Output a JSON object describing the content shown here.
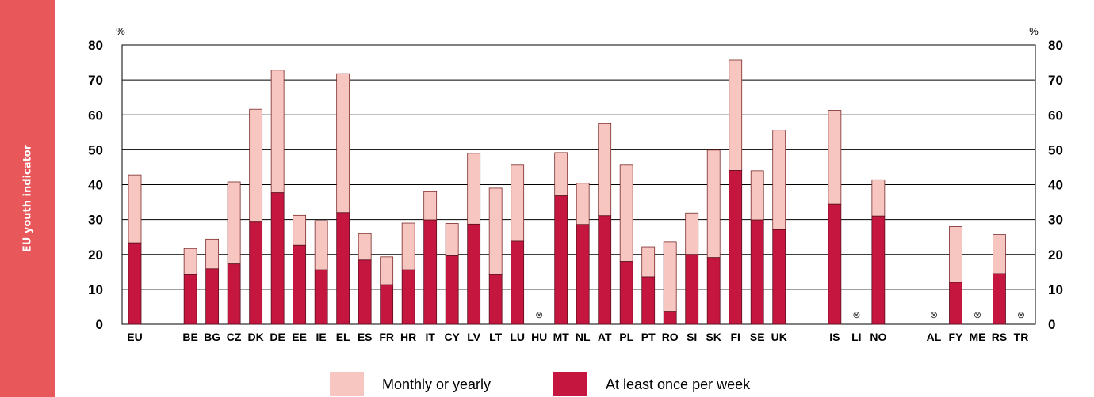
{
  "sidebar": {
    "label": "EU youth indicator",
    "color": "#e8585a"
  },
  "legend": [
    {
      "name": "Monthly or yearly",
      "color": "#f7c6c1"
    },
    {
      "name": "At least once per week",
      "color": "#c4163e"
    }
  ],
  "chart_data": {
    "type": "bar",
    "stacked": true,
    "categories": [
      "EU",
      "BE",
      "BG",
      "CZ",
      "DK",
      "DE",
      "EE",
      "IE",
      "EL",
      "ES",
      "FR",
      "HR",
      "IT",
      "CY",
      "LV",
      "LT",
      "LU",
      "HU",
      "MT",
      "NL",
      "AT",
      "PL",
      "PT",
      "RO",
      "SI",
      "SK",
      "FI",
      "SE",
      "UK",
      "IS",
      "LI",
      "NO",
      "AL",
      "FY",
      "ME",
      "RS",
      "TR"
    ],
    "groups": [
      [
        "EU"
      ],
      [
        "BE",
        "BG",
        "CZ",
        "DK",
        "DE",
        "EE",
        "IE",
        "EL",
        "ES",
        "FR",
        "HR",
        "IT",
        "CY",
        "LV",
        "LT",
        "LU",
        "HU",
        "MT",
        "NL",
        "AT",
        "PL",
        "PT",
        "RO",
        "SI",
        "SK",
        "FI",
        "SE",
        "UK"
      ],
      [
        "IS",
        "LI",
        "NO"
      ],
      [
        "AL",
        "FY",
        "ME",
        "RS",
        "TR"
      ]
    ],
    "series": [
      {
        "name": "At least once per week",
        "color": "#c4163e",
        "values": [
          23.3,
          14.2,
          15.9,
          17.3,
          29.3,
          37.7,
          22.6,
          15.6,
          32.0,
          18.4,
          11.3,
          15.6,
          29.9,
          19.6,
          28.7,
          14.2,
          23.8,
          null,
          36.8,
          28.6,
          31.1,
          18.0,
          13.6,
          3.7,
          20.0,
          19.1,
          44.1,
          29.9,
          27.1,
          34.4,
          null,
          31.0,
          null,
          12.0,
          null,
          14.5,
          null
        ]
      },
      {
        "name": "Monthly or yearly",
        "color": "#f7c6c1",
        "values": [
          19.5,
          7.5,
          8.5,
          23.5,
          32.3,
          35.1,
          8.6,
          14.1,
          39.8,
          7.6,
          8.0,
          13.4,
          8.1,
          9.3,
          20.3,
          24.8,
          21.8,
          null,
          12.4,
          11.8,
          26.4,
          27.6,
          8.6,
          19.9,
          11.9,
          30.8,
          31.6,
          14.1,
          28.5,
          26.9,
          null,
          10.4,
          null,
          16.0,
          null,
          11.2,
          null
        ]
      }
    ],
    "not_available_symbol": "⊗",
    "y_unit_left": "%",
    "y_unit_right": "%",
    "ylim": [
      0,
      80
    ],
    "yticks": [
      "0",
      "10",
      "20",
      "30",
      "40",
      "50",
      "60",
      "70",
      "80"
    ],
    "grid": true
  }
}
